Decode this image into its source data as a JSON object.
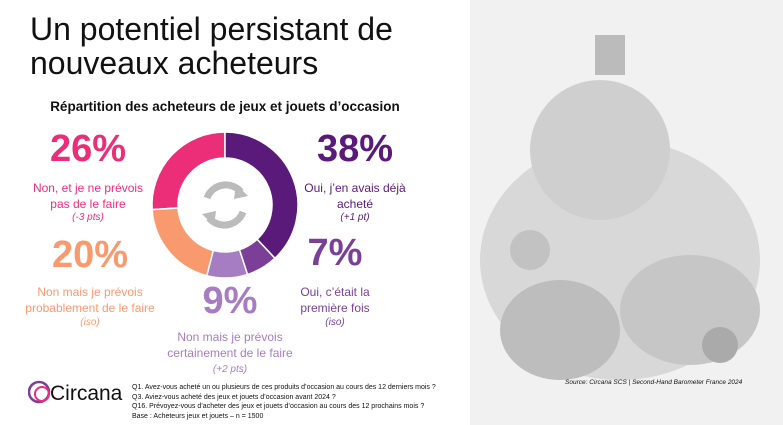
{
  "title": "Un potentiel persistant de\nnouveaux acheteurs",
  "chart_data": {
    "type": "donut",
    "title": "Répartition des acheteurs de jeux et jouets d’occasion",
    "categories": [
      "Oui, j’en avais déjà acheté",
      "Oui, c’était la première fois",
      "Non mais je prévois certainement de le faire",
      "Non mais je prévois probablement de le faire",
      "Non, et je ne prévois pas de le faire"
    ],
    "values": [
      38,
      7,
      9,
      20,
      26
    ],
    "value_labels": [
      "38%",
      "7%",
      "9%",
      "20%",
      "26%"
    ],
    "changes": [
      "(+1 pt)",
      "(iso)",
      "(+2 pts)",
      "(iso)",
      "(-3 pts)"
    ],
    "colors": [
      "#5a1a7a",
      "#7b3f98",
      "#a67dc2",
      "#f99a6e",
      "#ec2d78"
    ]
  },
  "footer": {
    "logo": "Circana.",
    "questions": [
      "Q1. Avez-vous acheté un ou plusieurs de ces produits d’occasion au cours des 12 derniers mois ?",
      "Q3. Aviez-vous acheté des jeux et jouets d’occasion avant 2024 ?",
      "Q16. Prévoyez-vous d’acheter des jeux et jouets d’occasion au cours des 12 prochains mois ?",
      "Base : Acheteurs jeux et jouets – n = 1500"
    ],
    "source": "Source: Circana SCS | Second-Hand Barometer France 2024"
  }
}
